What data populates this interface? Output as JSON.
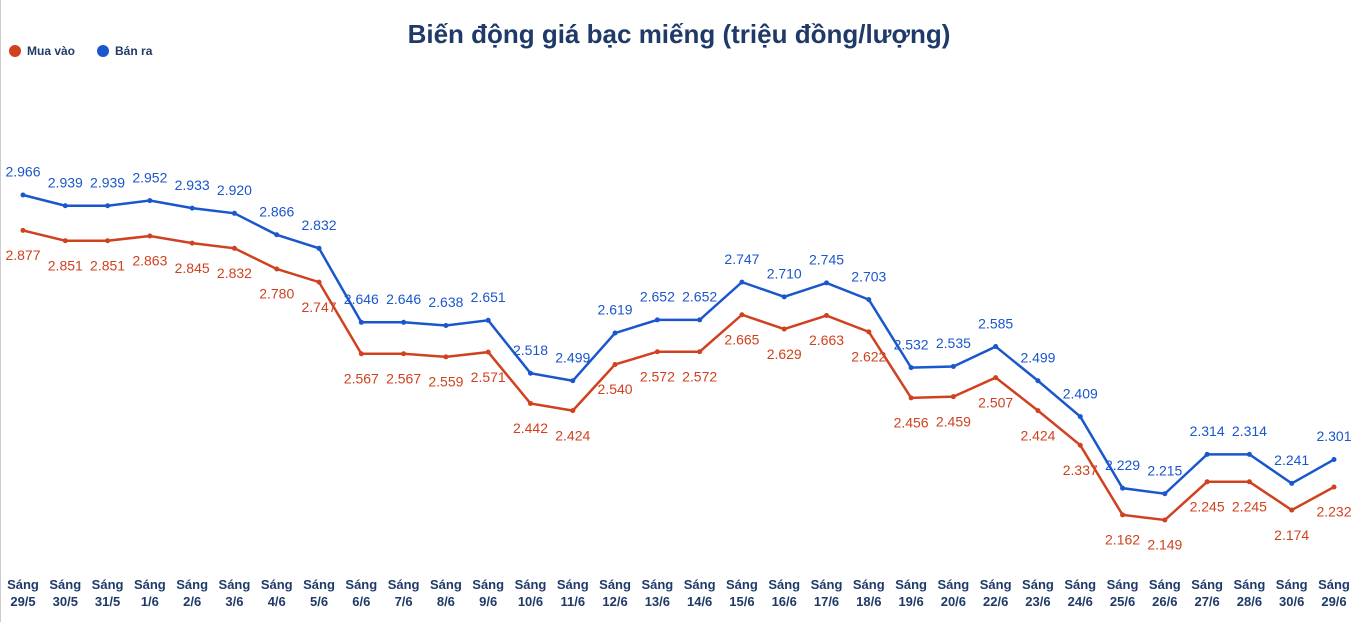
{
  "chart_data": {
    "type": "line",
    "title": "Biến động giá bạc miếng (triệu đồng/lượng)",
    "categories": [
      "Sáng 29/5",
      "Sáng 30/5",
      "Sáng 31/5",
      "Sáng 1/6",
      "Sáng 2/6",
      "Sáng 3/6",
      "Sáng 4/6",
      "Sáng 5/6",
      "Sáng 6/6",
      "Sáng 7/6",
      "Sáng 8/6",
      "Sáng 9/6",
      "Sáng 10/6",
      "Sáng 11/6",
      "Sáng 12/6",
      "Sáng 13/6",
      "Sáng 14/6",
      "Sáng 15/6",
      "Sáng 16/6",
      "Sáng 17/6",
      "Sáng 18/6",
      "Sáng 19/6",
      "Sáng 20/6",
      "Sáng 22/6",
      "Sáng 23/6",
      "Sáng 24/6",
      "Sáng 25/6",
      "Sáng 26/6",
      "Sáng 27/6",
      "Sáng 28/6",
      "Sáng 30/6",
      "Sáng 29/6"
    ],
    "series": [
      {
        "name": "Mua vào",
        "color": "#d0411f",
        "values": [
          2.877,
          2.851,
          2.851,
          2.863,
          2.845,
          2.832,
          2.78,
          2.747,
          2.567,
          2.567,
          2.559,
          2.571,
          2.442,
          2.424,
          2.54,
          2.572,
          2.572,
          2.665,
          2.629,
          2.663,
          2.622,
          2.456,
          2.459,
          2.507,
          2.424,
          2.337,
          2.162,
          2.149,
          2.245,
          2.245,
          2.174,
          2.232
        ],
        "value_labels": [
          "2.877",
          "2.851",
          "2.851",
          "2.863",
          "2.845",
          "2.832",
          "2.780",
          "2.747",
          "2.567",
          "2.567",
          "2.559",
          "2.571",
          "2.442",
          "2.424",
          "2.540",
          "2.572",
          "2.572",
          "2.665",
          "2.629",
          "2.663",
          "2.622",
          "2.456",
          "2.459",
          "2.507",
          "2.424",
          "2.337",
          "2.162",
          "2.149",
          "2.245",
          "2.245",
          "2.174",
          "2.232"
        ]
      },
      {
        "name": "Bán ra",
        "color": "#1a56cc",
        "values": [
          2.966,
          2.939,
          2.939,
          2.952,
          2.933,
          2.92,
          2.866,
          2.832,
          2.646,
          2.646,
          2.638,
          2.651,
          2.518,
          2.499,
          2.619,
          2.652,
          2.652,
          2.747,
          2.71,
          2.745,
          2.703,
          2.532,
          2.535,
          2.585,
          2.499,
          2.409,
          2.229,
          2.215,
          2.314,
          2.314,
          2.241,
          2.301
        ],
        "value_labels": [
          "2.966",
          "2.939",
          "2.939",
          "2.952",
          "2.933",
          "2.920",
          "2.866",
          "2.832",
          "2.646",
          "2.646",
          "2.638",
          "2.651",
          "2.518",
          "2.499",
          "2.619",
          "2.652",
          "2.652",
          "2.747",
          "2.710",
          "2.745",
          "2.703",
          "2.532",
          "2.535",
          "2.585",
          "2.499",
          "2.409",
          "2.229",
          "2.215",
          "2.314",
          "2.314",
          "2.241",
          "2.301"
        ]
      }
    ],
    "legend": "top-left"
  }
}
